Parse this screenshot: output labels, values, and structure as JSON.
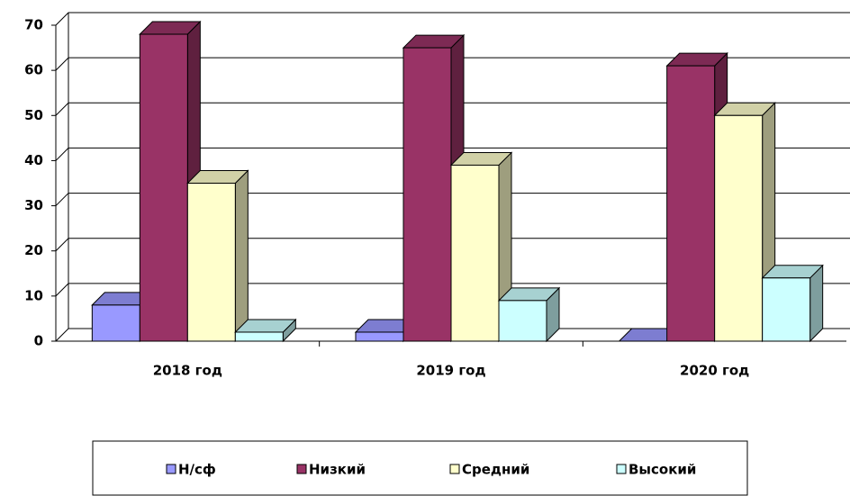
{
  "chart_data": {
    "type": "bar3d",
    "categories": [
      "2018 год",
      "2019 год",
      "2020 год"
    ],
    "series": [
      {
        "name": "Н/сф",
        "color": "#9999ff",
        "values": [
          8,
          2,
          0
        ]
      },
      {
        "name": "Низкий",
        "color": "#993366",
        "values": [
          68,
          65,
          61
        ]
      },
      {
        "name": "Средний",
        "color": "#ffffcc",
        "values": [
          35,
          39,
          50
        ]
      },
      {
        "name": "Высокий",
        "color": "#ccffff",
        "values": [
          2,
          9,
          14
        ]
      }
    ],
    "ylim": [
      0,
      70
    ],
    "yticks": [
      0,
      10,
      20,
      30,
      40,
      50,
      60,
      70
    ],
    "grid": true,
    "legend": "bottom"
  }
}
